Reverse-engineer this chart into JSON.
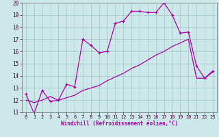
{
  "xlabel": "Windchill (Refroidissement éolien,°C)",
  "xlim": [
    -0.5,
    23.5
  ],
  "ylim": [
    11,
    20
  ],
  "background_color": "#cce8e8",
  "line_color": "#aa00aa",
  "grid_color": "#aacccc",
  "line1_x": [
    0,
    1,
    2,
    3,
    4,
    5,
    6,
    7,
    8,
    9,
    10,
    11,
    12,
    13,
    14,
    15,
    16,
    17,
    18,
    19,
    20,
    21,
    22,
    23
  ],
  "line1_y": [
    12.5,
    10.9,
    12.8,
    11.9,
    12.0,
    13.3,
    13.1,
    17.0,
    16.5,
    15.9,
    16.0,
    18.3,
    18.5,
    19.3,
    19.3,
    19.2,
    19.2,
    20.0,
    19.0,
    17.5,
    17.6,
    14.8,
    13.8,
    14.4
  ],
  "line2_x": [
    0,
    1,
    2,
    3,
    4,
    5,
    6,
    7,
    8,
    9,
    10,
    11,
    12,
    13,
    14,
    15,
    16,
    17,
    18,
    19,
    20,
    21,
    22,
    23
  ],
  "line2_y": [
    12.0,
    11.8,
    12.0,
    12.3,
    12.0,
    12.2,
    12.4,
    12.8,
    13.0,
    13.2,
    13.6,
    13.9,
    14.2,
    14.6,
    14.9,
    15.3,
    15.7,
    16.0,
    16.4,
    16.7,
    17.0,
    13.8,
    13.8,
    14.3
  ]
}
